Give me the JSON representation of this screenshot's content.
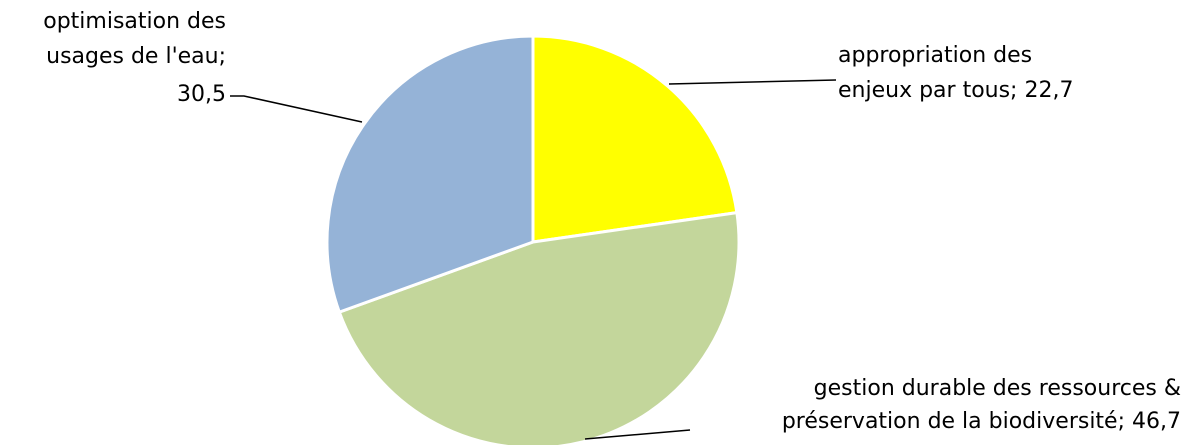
{
  "chart_data": {
    "type": "pie",
    "title": "",
    "slices": [
      {
        "name": "appropriation des enjeux par tous",
        "value": 22.7,
        "value_label": "22,7",
        "color": "#FFFF00",
        "label_lines": [
          "appropriation des",
          "enjeux par tous; 22,7"
        ]
      },
      {
        "name": "gestion durable des ressources & préservation de la biodiversité",
        "value": 46.7,
        "value_label": "46,7",
        "color": "#C3D69B",
        "label_lines": [
          "gestion durable des ressources &",
          "préservation de la biodiversité; 46,7"
        ]
      },
      {
        "name": "optimisation des usages de l'eau",
        "value": 30.5,
        "value_label": "30,5",
        "color": "#95B3D7",
        "label_lines": [
          "optimisation des",
          "usages de l'eau;",
          "30,5"
        ]
      }
    ],
    "start_angle": "12 o'clock",
    "direction": "clockwise",
    "legend": "none",
    "data_labels": "outside with leader lines"
  }
}
